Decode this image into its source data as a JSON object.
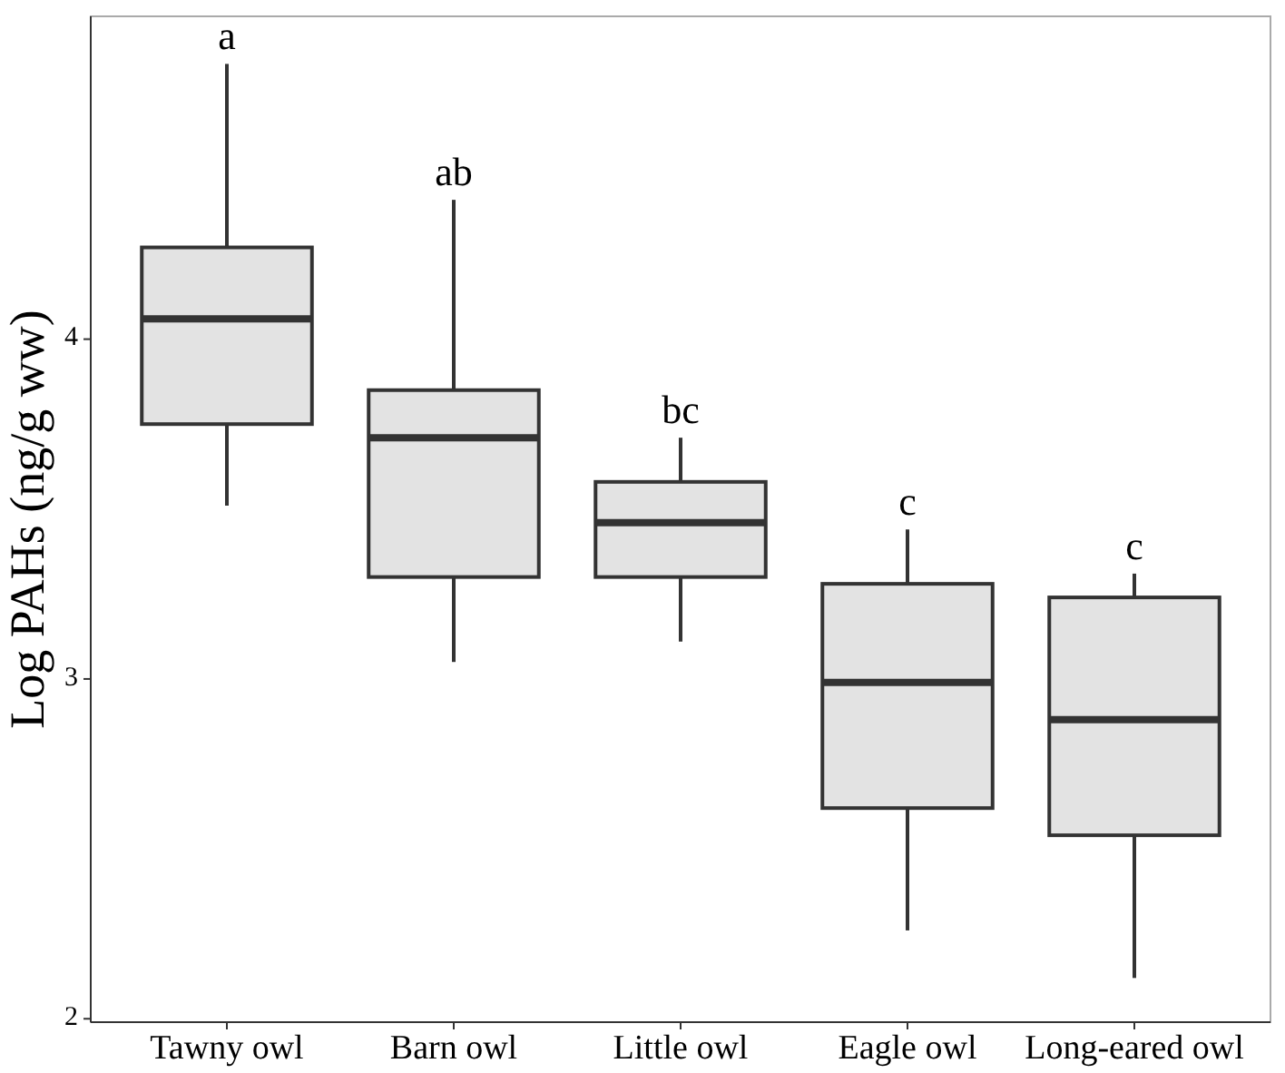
{
  "chart_data": {
    "type": "box",
    "ylabel": "Log PAHs (ng/g ww)",
    "categories": [
      "Tawny owl",
      "Barn owl",
      "Little owl",
      "Eagle owl",
      "Long-eared owl"
    ],
    "boxes": [
      {
        "low": 3.51,
        "q1": 3.75,
        "median": 4.06,
        "q3": 4.27,
        "high": 4.81
      },
      {
        "low": 3.05,
        "q1": 3.3,
        "median": 3.71,
        "q3": 3.85,
        "high": 4.41
      },
      {
        "low": 3.11,
        "q1": 3.3,
        "median": 3.46,
        "q3": 3.58,
        "high": 3.71
      },
      {
        "low": 2.26,
        "q1": 2.62,
        "median": 2.99,
        "q3": 3.28,
        "high": 3.44
      },
      {
        "low": 2.12,
        "q1": 2.54,
        "median": 2.88,
        "q3": 3.24,
        "high": 3.31
      }
    ],
    "color": "#e3e3e3",
    "ylim": [
      1.99,
      4.95
    ],
    "yticks": [
      2,
      3,
      4
    ],
    "grid": false,
    "annotations": [
      "a",
      "ab",
      "bc",
      "c",
      "c"
    ]
  }
}
